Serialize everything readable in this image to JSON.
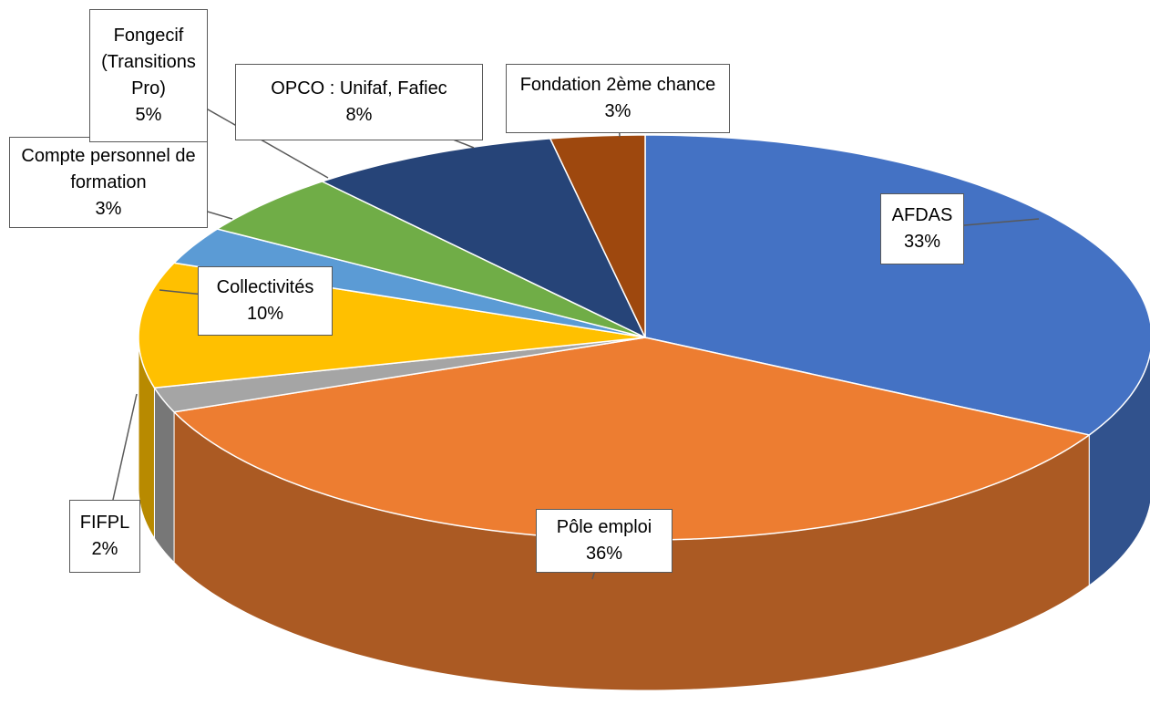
{
  "chart_data": {
    "type": "pie",
    "categories": [
      "AFDAS",
      "Pôle emploi",
      "FIFPL",
      "Collectivités",
      "Compte personnel de formation",
      "Fongecif (Transitions Pro)",
      "OPCO : Unifaf, Fafiec",
      "Fondation 2ème chance"
    ],
    "values": [
      33,
      36,
      2,
      10,
      3,
      5,
      8,
      3
    ],
    "value_labels": [
      "33%",
      "36%",
      "2%",
      "10%",
      "3%",
      "5%",
      "8%",
      "3%"
    ],
    "colors": [
      "#4472c4",
      "#ed7d31",
      "#a5a5a5",
      "#ffc000",
      "#5b9bd5",
      "#70ad47",
      "#264478",
      "#9e480e"
    ]
  }
}
